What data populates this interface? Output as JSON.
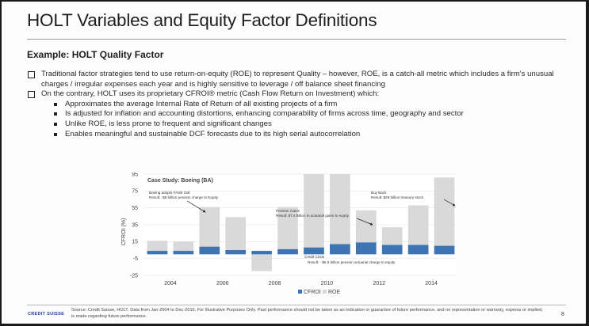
{
  "slide": {
    "title": "HOLT Variables and Equity Factor Definitions",
    "subtitle": "Example: HOLT Quality Factor",
    "bullet1": "Traditional factor strategies tend to use return-on-equity (ROE) to represent Quality – however, ROE, is a catch-all metric which includes a firm's unusual charges / irregular expenses each year and is highly sensitive to leverage / off balance sheet financing",
    "bullet2": "On the contrary, HOLT uses its proprietary CFROI® metric (Cash Flow Return on Investment) which:",
    "sub_bullets": [
      "Approximates the average Internal Rate of Return of all existing projects of a firm",
      "Is adjusted for inflation and accounting distortions, enhancing comparability of firms across time, geography and sector",
      "Unlike ROE, is less prone to frequent and significant changes",
      "Enables meaningful and sustainable DCF forecasts due to its high serial autocorrelation"
    ],
    "footer_logo": "CREDIT SUISSE",
    "footer_source": "Source: Credit Suisse, HOLT. Data from Jan-2004 to Dec-2016. For Illustrative Purposes Only. Past performance should not be taken as an indication or guarantee of future performance, and no representation or warranty, express or implied, is made regarding future performance.",
    "page_number": "8"
  },
  "chart_data": {
    "type": "bar",
    "title": "Case Study: Boeing (BA)",
    "ylabel": "CFROI (%)",
    "xlabel": "",
    "ylim": [
      -25,
      95
    ],
    "yticks": [
      95,
      75,
      55,
      35,
      15,
      -5,
      -25
    ],
    "xtick_labels": [
      "2004",
      "2006",
      "2008",
      "2010",
      "2012",
      "2014"
    ],
    "categories": [
      "2004",
      "2005",
      "2006",
      "2007",
      "2008",
      "2009",
      "2010",
      "2011",
      "2012",
      "2013",
      "2014",
      "2015"
    ],
    "series": [
      {
        "name": "CFROI",
        "color": "#3e74b4",
        "values": [
          4,
          4,
          9,
          5,
          4,
          6,
          8,
          12,
          14,
          11,
          11,
          10
        ]
      },
      {
        "name": "ROE",
        "color": "#d9d9d9",
        "values": [
          16,
          15,
          56,
          44,
          -20,
          56,
          100,
          100,
          52,
          32,
          58,
          91
        ]
      }
    ],
    "legend": [
      "CFROI",
      "ROE"
    ],
    "legend_position": "bottom",
    "annotations": [
      {
        "lines": [
          "Boeing adopts FASB 158",
          "Result: -$8 billion pension charge to Equity"
        ]
      },
      {
        "lines": [
          "Pension Gains",
          "Result: $7.6 billion in actuarial gains to equity"
        ]
      },
      {
        "lines": [
          "Buy Back",
          "Result: $29 billion treasury stock"
        ]
      },
      {
        "lines": [
          "Credit Crisis",
          "Result: - $6.5 billion pension actuarial charge to equity"
        ]
      }
    ]
  }
}
